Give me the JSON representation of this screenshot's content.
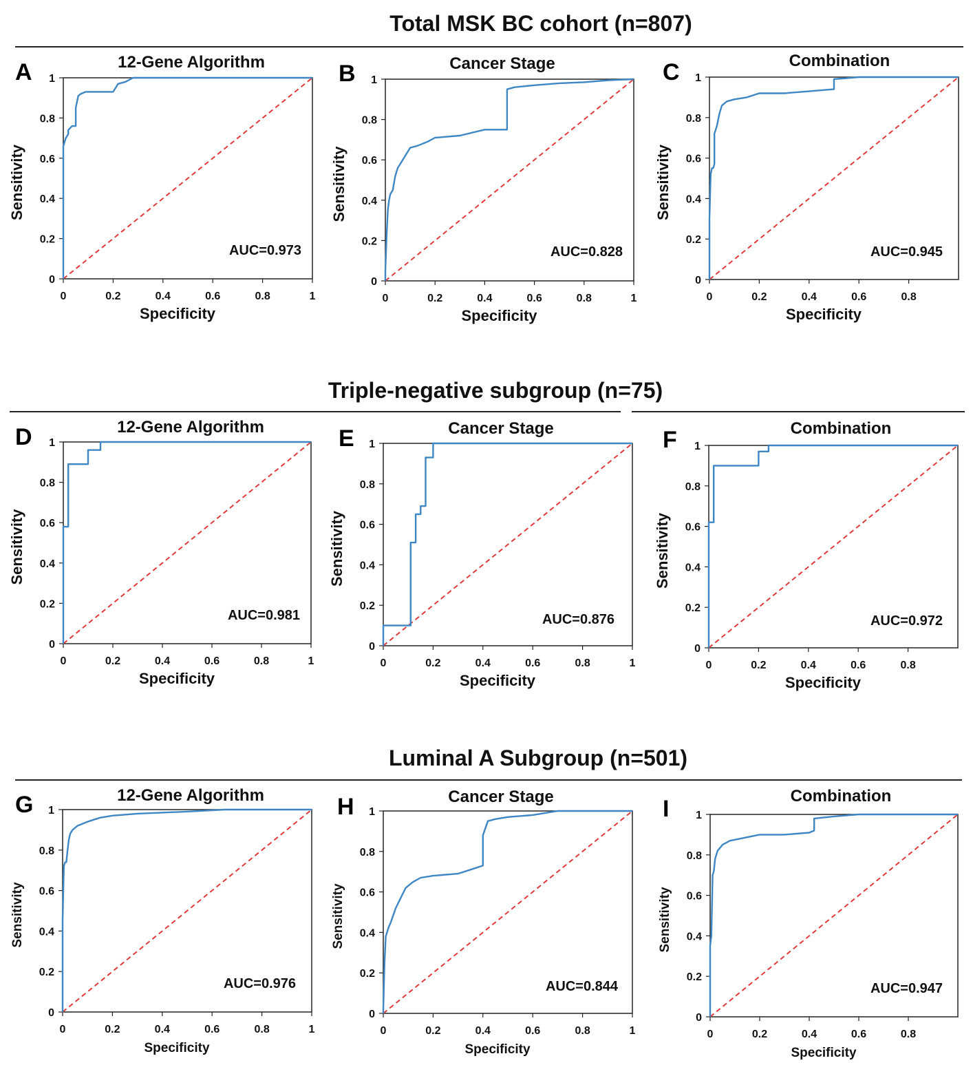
{
  "colors": {
    "roc": "#3f86c4",
    "diagonal": "#e03a3a",
    "axis": "#222222",
    "text": "#111111"
  },
  "sections": [
    {
      "title": "Total MSK BC cohort (n=807)"
    },
    {
      "title": "Triple-negative subgroup (n=75)"
    },
    {
      "title": "Luminal A Subgroup (n=501)"
    }
  ],
  "chart_data": [
    {
      "letter": "A",
      "type": "line",
      "title": "12-Gene Algorithm",
      "xlabel": "Specificity",
      "ylabel": "Sensitivity",
      "xlim": [
        0,
        1
      ],
      "ylim": [
        0,
        1
      ],
      "xticks": [
        "0",
        "0.2",
        "0.4",
        "0.6",
        "0.8",
        "1"
      ],
      "yticks": [
        "0",
        "0.2",
        "0.4",
        "0.6",
        "0.8",
        "1"
      ],
      "auc_label": "AUC=0.973",
      "series": [
        {
          "name": "ROC",
          "x": [
            0,
            0,
            0.005,
            0.01,
            0.02,
            0.02,
            0.035,
            0.05,
            0.05,
            0.055,
            0.06,
            0.07,
            0.09,
            0.13,
            0.2,
            0.21,
            0.22,
            0.25,
            0.28,
            0.3,
            1.0
          ],
          "y": [
            0,
            0.66,
            0.68,
            0.7,
            0.72,
            0.74,
            0.76,
            0.76,
            0.85,
            0.88,
            0.91,
            0.92,
            0.93,
            0.93,
            0.93,
            0.95,
            0.97,
            0.98,
            1.0,
            1.0,
            1.0
          ]
        },
        {
          "name": "chance",
          "x": [
            0,
            1
          ],
          "y": [
            0,
            1
          ]
        }
      ]
    },
    {
      "letter": "B",
      "type": "line",
      "title": "Cancer Stage",
      "xlabel": "Specificity",
      "ylabel": "Sensitivity",
      "xlim": [
        0,
        1
      ],
      "ylim": [
        0,
        1
      ],
      "xticks": [
        "0",
        "0.2",
        "0.4",
        "0.6",
        "0.8",
        "1"
      ],
      "yticks": [
        "0",
        "0.2",
        "0.4",
        "0.6",
        "0.8",
        "1"
      ],
      "auc_label": "AUC=0.828",
      "series": [
        {
          "name": "ROC",
          "x": [
            0,
            0,
            0.005,
            0.01,
            0.015,
            0.02,
            0.03,
            0.04,
            0.05,
            0.06,
            0.08,
            0.1,
            0.13,
            0.17,
            0.2,
            0.3,
            0.4,
            0.49,
            0.49,
            0.52,
            0.6,
            0.7,
            0.8,
            0.9,
            1.0
          ],
          "y": [
            0,
            0.05,
            0.22,
            0.35,
            0.4,
            0.43,
            0.45,
            0.52,
            0.56,
            0.58,
            0.62,
            0.66,
            0.67,
            0.69,
            0.71,
            0.72,
            0.75,
            0.75,
            0.95,
            0.96,
            0.97,
            0.98,
            0.985,
            0.995,
            1.0
          ]
        },
        {
          "name": "chance",
          "x": [
            0,
            1
          ],
          "y": [
            0,
            1
          ]
        }
      ]
    },
    {
      "letter": "C",
      "type": "line",
      "title": "Combination",
      "xlabel": "Specificity",
      "ylabel": "Sensitivity",
      "xlim": [
        0,
        1
      ],
      "ylim": [
        0,
        1
      ],
      "xticks": [
        "0",
        "0.2",
        "0.4",
        "0.6",
        "0.8"
      ],
      "yticks": [
        "0",
        "0.2",
        "0.4",
        "0.6",
        "0.8",
        "1"
      ],
      "auc_label": "AUC=0.945",
      "series": [
        {
          "name": "ROC",
          "x": [
            0,
            0,
            0.005,
            0.01,
            0.015,
            0.02,
            0.02,
            0.03,
            0.04,
            0.05,
            0.07,
            0.1,
            0.15,
            0.2,
            0.3,
            0.4,
            0.5,
            0.5,
            0.55,
            0.6,
            0.7,
            1.0
          ],
          "y": [
            0,
            0.3,
            0.52,
            0.55,
            0.55,
            0.57,
            0.72,
            0.76,
            0.82,
            0.86,
            0.88,
            0.89,
            0.9,
            0.92,
            0.92,
            0.93,
            0.94,
            0.99,
            0.995,
            1.0,
            1.0,
            1.0
          ]
        },
        {
          "name": "chance",
          "x": [
            0,
            1
          ],
          "y": [
            0,
            1
          ]
        }
      ]
    },
    {
      "letter": "D",
      "type": "line",
      "title": "12-Gene Algorithm",
      "xlabel": "Specificity",
      "ylabel": "Sensitivity",
      "xlim": [
        0,
        1
      ],
      "ylim": [
        0,
        1
      ],
      "xticks": [
        "0",
        "0.2",
        "0.4",
        "0.6",
        "0.8",
        "1"
      ],
      "yticks": [
        "0",
        "0.2",
        "0.4",
        "0.6",
        "0.8",
        "1"
      ],
      "auc_label": "AUC=0.981",
      "series": [
        {
          "name": "ROC",
          "x": [
            0,
            0,
            0.02,
            0.02,
            0.1,
            0.1,
            0.15,
            0.15,
            1.0
          ],
          "y": [
            0,
            0.58,
            0.58,
            0.89,
            0.89,
            0.96,
            0.96,
            1.0,
            1.0
          ]
        },
        {
          "name": "chance",
          "x": [
            0,
            1
          ],
          "y": [
            0,
            1
          ]
        }
      ]
    },
    {
      "letter": "E",
      "type": "line",
      "title": "Cancer Stage",
      "xlabel": "Specificity",
      "ylabel": "Sensitivity",
      "xlim": [
        0,
        1
      ],
      "ylim": [
        0,
        1
      ],
      "xticks": [
        "0",
        "0.2",
        "0.4",
        "0.6",
        "0.8",
        "1"
      ],
      "yticks": [
        "0",
        "0.2",
        "0.4",
        "0.6",
        "0.8",
        "1"
      ],
      "auc_label": "AUC=0.876",
      "series": [
        {
          "name": "ROC",
          "x": [
            0,
            0,
            0.11,
            0.11,
            0.13,
            0.13,
            0.15,
            0.15,
            0.17,
            0.17,
            0.2,
            0.2,
            1.0
          ],
          "y": [
            0,
            0.1,
            0.1,
            0.51,
            0.51,
            0.65,
            0.65,
            0.69,
            0.69,
            0.93,
            0.93,
            1.0,
            1.0
          ]
        },
        {
          "name": "chance",
          "x": [
            0,
            1
          ],
          "y": [
            0,
            1
          ]
        }
      ]
    },
    {
      "letter": "F",
      "type": "line",
      "title": "Combination",
      "xlabel": "Specificity",
      "ylabel": "Sensitivity",
      "xlim": [
        0,
        1
      ],
      "ylim": [
        0,
        1
      ],
      "xticks": [
        "0",
        "0.2",
        "0.4",
        "0.6",
        "0.8"
      ],
      "yticks": [
        "0",
        "0.2",
        "0.4",
        "0.6",
        "0.8",
        "1"
      ],
      "auc_label": "AUC=0.972",
      "series": [
        {
          "name": "ROC",
          "x": [
            0,
            0,
            0.02,
            0.02,
            0.2,
            0.2,
            0.24,
            0.24,
            1.0
          ],
          "y": [
            0,
            0.62,
            0.62,
            0.9,
            0.9,
            0.97,
            0.97,
            1.0,
            1.0
          ]
        },
        {
          "name": "chance",
          "x": [
            0,
            1
          ],
          "y": [
            0,
            1
          ]
        }
      ]
    },
    {
      "letter": "G",
      "type": "line",
      "title": "12-Gene Algorithm",
      "xlabel": "Specificity",
      "ylabel": "Sensitivity",
      "xlim": [
        0,
        1
      ],
      "ylim": [
        0,
        1
      ],
      "xticks": [
        "0",
        "0.2",
        "0.4",
        "0.6",
        "0.8",
        "1"
      ],
      "yticks": [
        "0",
        "0.2",
        "0.4",
        "0.6",
        "0.8",
        "1"
      ],
      "auc_label": "AUC=0.976",
      "series": [
        {
          "name": "ROC",
          "x": [
            0,
            0,
            0.005,
            0.01,
            0.015,
            0.02,
            0.025,
            0.03,
            0.04,
            0.06,
            0.1,
            0.15,
            0.2,
            0.3,
            0.5,
            0.65,
            1.0
          ],
          "y": [
            0,
            0.45,
            0.72,
            0.74,
            0.74,
            0.8,
            0.85,
            0.88,
            0.9,
            0.92,
            0.94,
            0.96,
            0.97,
            0.98,
            0.99,
            1.0,
            1.0
          ]
        },
        {
          "name": "chance",
          "x": [
            0,
            1
          ],
          "y": [
            0,
            1
          ]
        }
      ]
    },
    {
      "letter": "H",
      "type": "line",
      "title": "Cancer Stage",
      "xlabel": "Specificity",
      "ylabel": "Sensitivity",
      "xlim": [
        0,
        1
      ],
      "ylim": [
        0,
        1
      ],
      "xticks": [
        "0",
        "0.2",
        "0.4",
        "0.6",
        "0.8",
        "1"
      ],
      "yticks": [
        "0",
        "0.2",
        "0.4",
        "0.6",
        "0.8",
        "1"
      ],
      "auc_label": "AUC=0.844",
      "series": [
        {
          "name": "ROC",
          "x": [
            0,
            0,
            0.005,
            0.01,
            0.02,
            0.03,
            0.05,
            0.07,
            0.09,
            0.12,
            0.15,
            0.2,
            0.3,
            0.35,
            0.4,
            0.4,
            0.42,
            0.45,
            0.5,
            0.6,
            0.7,
            1.0
          ],
          "y": [
            0,
            0.02,
            0.25,
            0.38,
            0.42,
            0.45,
            0.52,
            0.57,
            0.62,
            0.65,
            0.67,
            0.68,
            0.69,
            0.71,
            0.73,
            0.88,
            0.95,
            0.96,
            0.97,
            0.98,
            1.0,
            1.0
          ]
        },
        {
          "name": "chance",
          "x": [
            0,
            1
          ],
          "y": [
            0,
            1
          ]
        }
      ]
    },
    {
      "letter": "I",
      "type": "line",
      "title": "Combination",
      "xlabel": "Specificity",
      "ylabel": "Sensitivity",
      "xlim": [
        0,
        1
      ],
      "ylim": [
        0,
        1
      ],
      "xticks": [
        "0",
        "0.2",
        "0.4",
        "0.6",
        "0.8"
      ],
      "yticks": [
        "0",
        "0.2",
        "0.4",
        "0.6",
        "0.8",
        "1"
      ],
      "auc_label": "AUC=0.947",
      "series": [
        {
          "name": "ROC",
          "x": [
            0,
            0,
            0.005,
            0.01,
            0.015,
            0.02,
            0.03,
            0.05,
            0.08,
            0.12,
            0.2,
            0.3,
            0.4,
            0.42,
            0.42,
            0.5,
            0.6,
            1.0
          ],
          "y": [
            0,
            0.35,
            0.4,
            0.7,
            0.72,
            0.78,
            0.82,
            0.85,
            0.87,
            0.88,
            0.9,
            0.9,
            0.91,
            0.92,
            0.98,
            0.99,
            1.0,
            1.0
          ]
        },
        {
          "name": "chance",
          "x": [
            0,
            1
          ],
          "y": [
            0,
            1
          ]
        }
      ]
    }
  ]
}
